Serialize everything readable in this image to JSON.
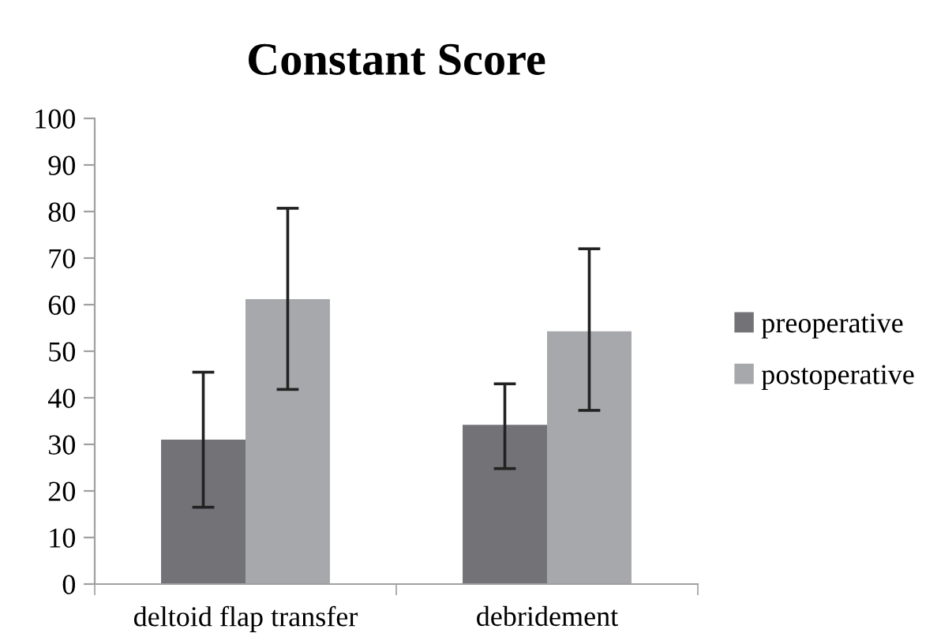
{
  "chart_data": {
    "type": "bar",
    "title": "Constant Score",
    "categories": [
      "deltoid flap transfer",
      "debridement"
    ],
    "series": [
      {
        "name": "preoperative",
        "color": "#737377",
        "values": [
          31,
          34.2
        ],
        "errors": [
          [
            16.5,
            45.5
          ],
          [
            24.8,
            43
          ]
        ]
      },
      {
        "name": "postoperative",
        "color": "#a7a8ab",
        "values": [
          61.2,
          54.3
        ],
        "errors": [
          [
            41.8,
            80.7
          ],
          [
            37.3,
            72
          ]
        ]
      }
    ],
    "ylim": [
      0,
      100
    ],
    "yticks": [
      0,
      10,
      20,
      30,
      40,
      50,
      60,
      70,
      80,
      90,
      100
    ],
    "grid": false,
    "legend": "right"
  }
}
